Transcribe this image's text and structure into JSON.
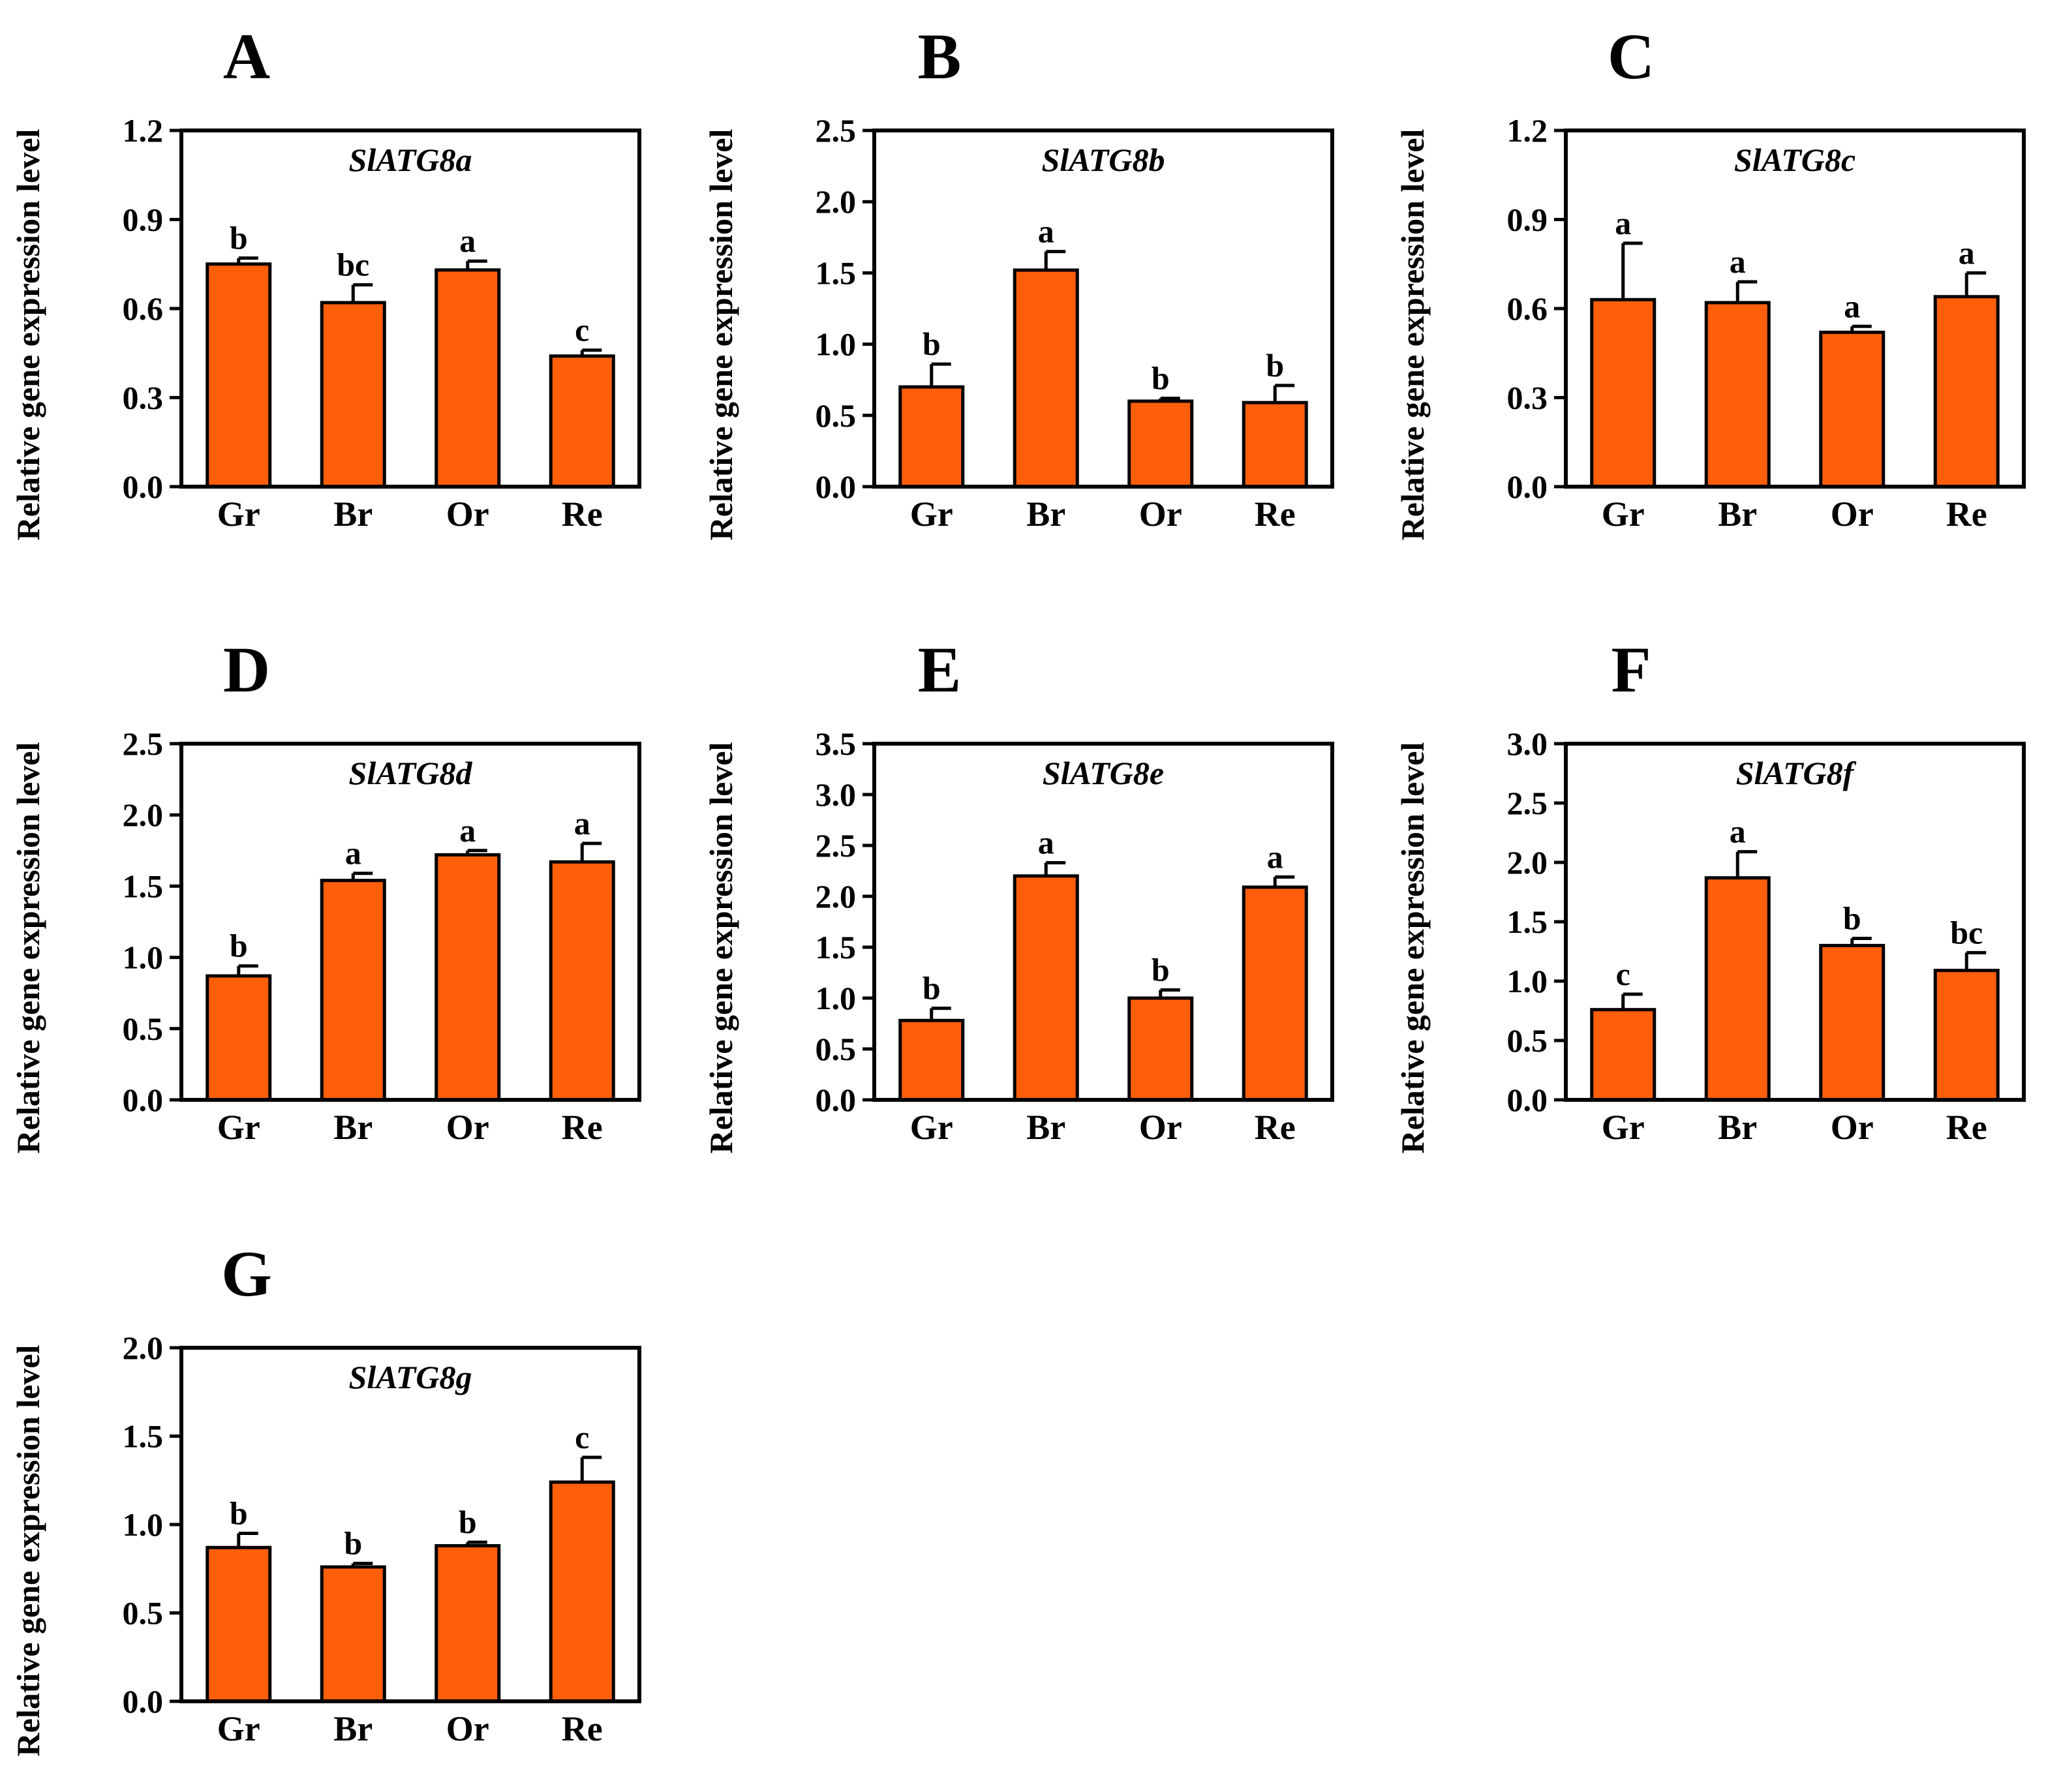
{
  "chart_data": [
    {
      "type": "bar",
      "panel": "A",
      "title": "SlATG8a",
      "ylabel": "Relative gene expression level",
      "xlabel": "",
      "categories": [
        "Gr",
        "Br",
        "Or",
        "Re"
      ],
      "values": [
        0.75,
        0.62,
        0.73,
        0.44
      ],
      "errors": [
        0.02,
        0.06,
        0.03,
        0.02
      ],
      "significance": [
        "b",
        "bc",
        "a",
        "c"
      ],
      "ylim": [
        0,
        1.2
      ],
      "yticks": [
        0.0,
        0.3,
        0.6,
        0.9,
        1.2
      ],
      "ytick_labels": [
        "0.0",
        "0.3",
        "0.6",
        "0.9",
        "1.2"
      ],
      "color": "#FF5F0A"
    },
    {
      "type": "bar",
      "panel": "B",
      "title": "SlATG8b",
      "ylabel": "Relative gene expression level",
      "xlabel": "",
      "categories": [
        "Gr",
        "Br",
        "Or",
        "Re"
      ],
      "values": [
        0.7,
        1.52,
        0.6,
        0.59
      ],
      "errors": [
        0.16,
        0.13,
        0.02,
        0.12
      ],
      "significance": [
        "b",
        "a",
        "b",
        "b"
      ],
      "ylim": [
        0,
        2.5
      ],
      "yticks": [
        0.0,
        0.5,
        1.0,
        1.5,
        2.0,
        2.5
      ],
      "ytick_labels": [
        "0.0",
        "0.5",
        "1.0",
        "1.5",
        "2.0",
        "2.5"
      ],
      "color": "#FF5F0A"
    },
    {
      "type": "bar",
      "panel": "C",
      "title": "SlATG8c",
      "ylabel": "Relative gene expression level",
      "xlabel": "",
      "categories": [
        "Gr",
        "Br",
        "Or",
        "Re"
      ],
      "values": [
        0.63,
        0.62,
        0.52,
        0.64
      ],
      "errors": [
        0.19,
        0.07,
        0.02,
        0.08
      ],
      "significance": [
        "a",
        "a",
        "a",
        "a"
      ],
      "ylim": [
        0,
        1.2
      ],
      "yticks": [
        0.0,
        0.3,
        0.6,
        0.9,
        1.2
      ],
      "ytick_labels": [
        "0.0",
        "0.3",
        "0.6",
        "0.9",
        "1.2"
      ],
      "color": "#FF5F0A"
    },
    {
      "type": "bar",
      "panel": "D",
      "title": "SlATG8d",
      "ylabel": "Relative gene expression level",
      "xlabel": "",
      "categories": [
        "Gr",
        "Br",
        "Or",
        "Re"
      ],
      "values": [
        0.87,
        1.54,
        1.72,
        1.67
      ],
      "errors": [
        0.07,
        0.05,
        0.03,
        0.13
      ],
      "significance": [
        "b",
        "a",
        "a",
        "a"
      ],
      "ylim": [
        0,
        2.5
      ],
      "yticks": [
        0.0,
        0.5,
        1.0,
        1.5,
        2.0,
        2.5
      ],
      "ytick_labels": [
        "0.0",
        "0.5",
        "1.0",
        "1.5",
        "2.0",
        "2.5"
      ],
      "color": "#FF5F0A"
    },
    {
      "type": "bar",
      "panel": "E",
      "title": "SlATG8e",
      "ylabel": "Relative gene expression level",
      "xlabel": "",
      "categories": [
        "Gr",
        "Br",
        "Or",
        "Re"
      ],
      "values": [
        0.78,
        2.2,
        1.0,
        2.09
      ],
      "errors": [
        0.12,
        0.13,
        0.08,
        0.1
      ],
      "significance": [
        "b",
        "a",
        "b",
        "a"
      ],
      "ylim": [
        0,
        3.5
      ],
      "yticks": [
        0.0,
        0.5,
        1.0,
        1.5,
        2.0,
        2.5,
        3.0,
        3.5
      ],
      "ytick_labels": [
        "0.0",
        "0.5",
        "1.0",
        "1.5",
        "2.0",
        "2.5",
        "3.0",
        "3.5"
      ],
      "color": "#FF5F0A"
    },
    {
      "type": "bar",
      "panel": "F",
      "title": "SlATG8f",
      "ylabel": "Relative gene expression level",
      "xlabel": "",
      "categories": [
        "Gr",
        "Br",
        "Or",
        "Re"
      ],
      "values": [
        0.76,
        1.87,
        1.3,
        1.09
      ],
      "errors": [
        0.13,
        0.22,
        0.06,
        0.15
      ],
      "significance": [
        "c",
        "a",
        "b",
        "bc"
      ],
      "ylim": [
        0,
        3.0
      ],
      "yticks": [
        0.0,
        0.5,
        1.0,
        1.5,
        2.0,
        2.5,
        3.0
      ],
      "ytick_labels": [
        "0.0",
        "0.5",
        "1.0",
        "1.5",
        "2.0",
        "2.5",
        "3.0"
      ],
      "color": "#FF5F0A"
    },
    {
      "type": "bar",
      "panel": "G",
      "title": "SlATG8g",
      "ylabel": "Relative gene expression level",
      "xlabel": "",
      "categories": [
        "Gr",
        "Br",
        "Or",
        "Re"
      ],
      "values": [
        0.87,
        0.76,
        0.88,
        1.24
      ],
      "errors": [
        0.08,
        0.02,
        0.02,
        0.14
      ],
      "significance": [
        "b",
        "b",
        "b",
        "c"
      ],
      "ylim": [
        0,
        2.0
      ],
      "yticks": [
        0.0,
        0.5,
        1.0,
        1.5,
        2.0
      ],
      "ytick_labels": [
        "0.0",
        "0.5",
        "1.0",
        "1.5",
        "2.0"
      ],
      "color": "#FF5F0A"
    }
  ]
}
